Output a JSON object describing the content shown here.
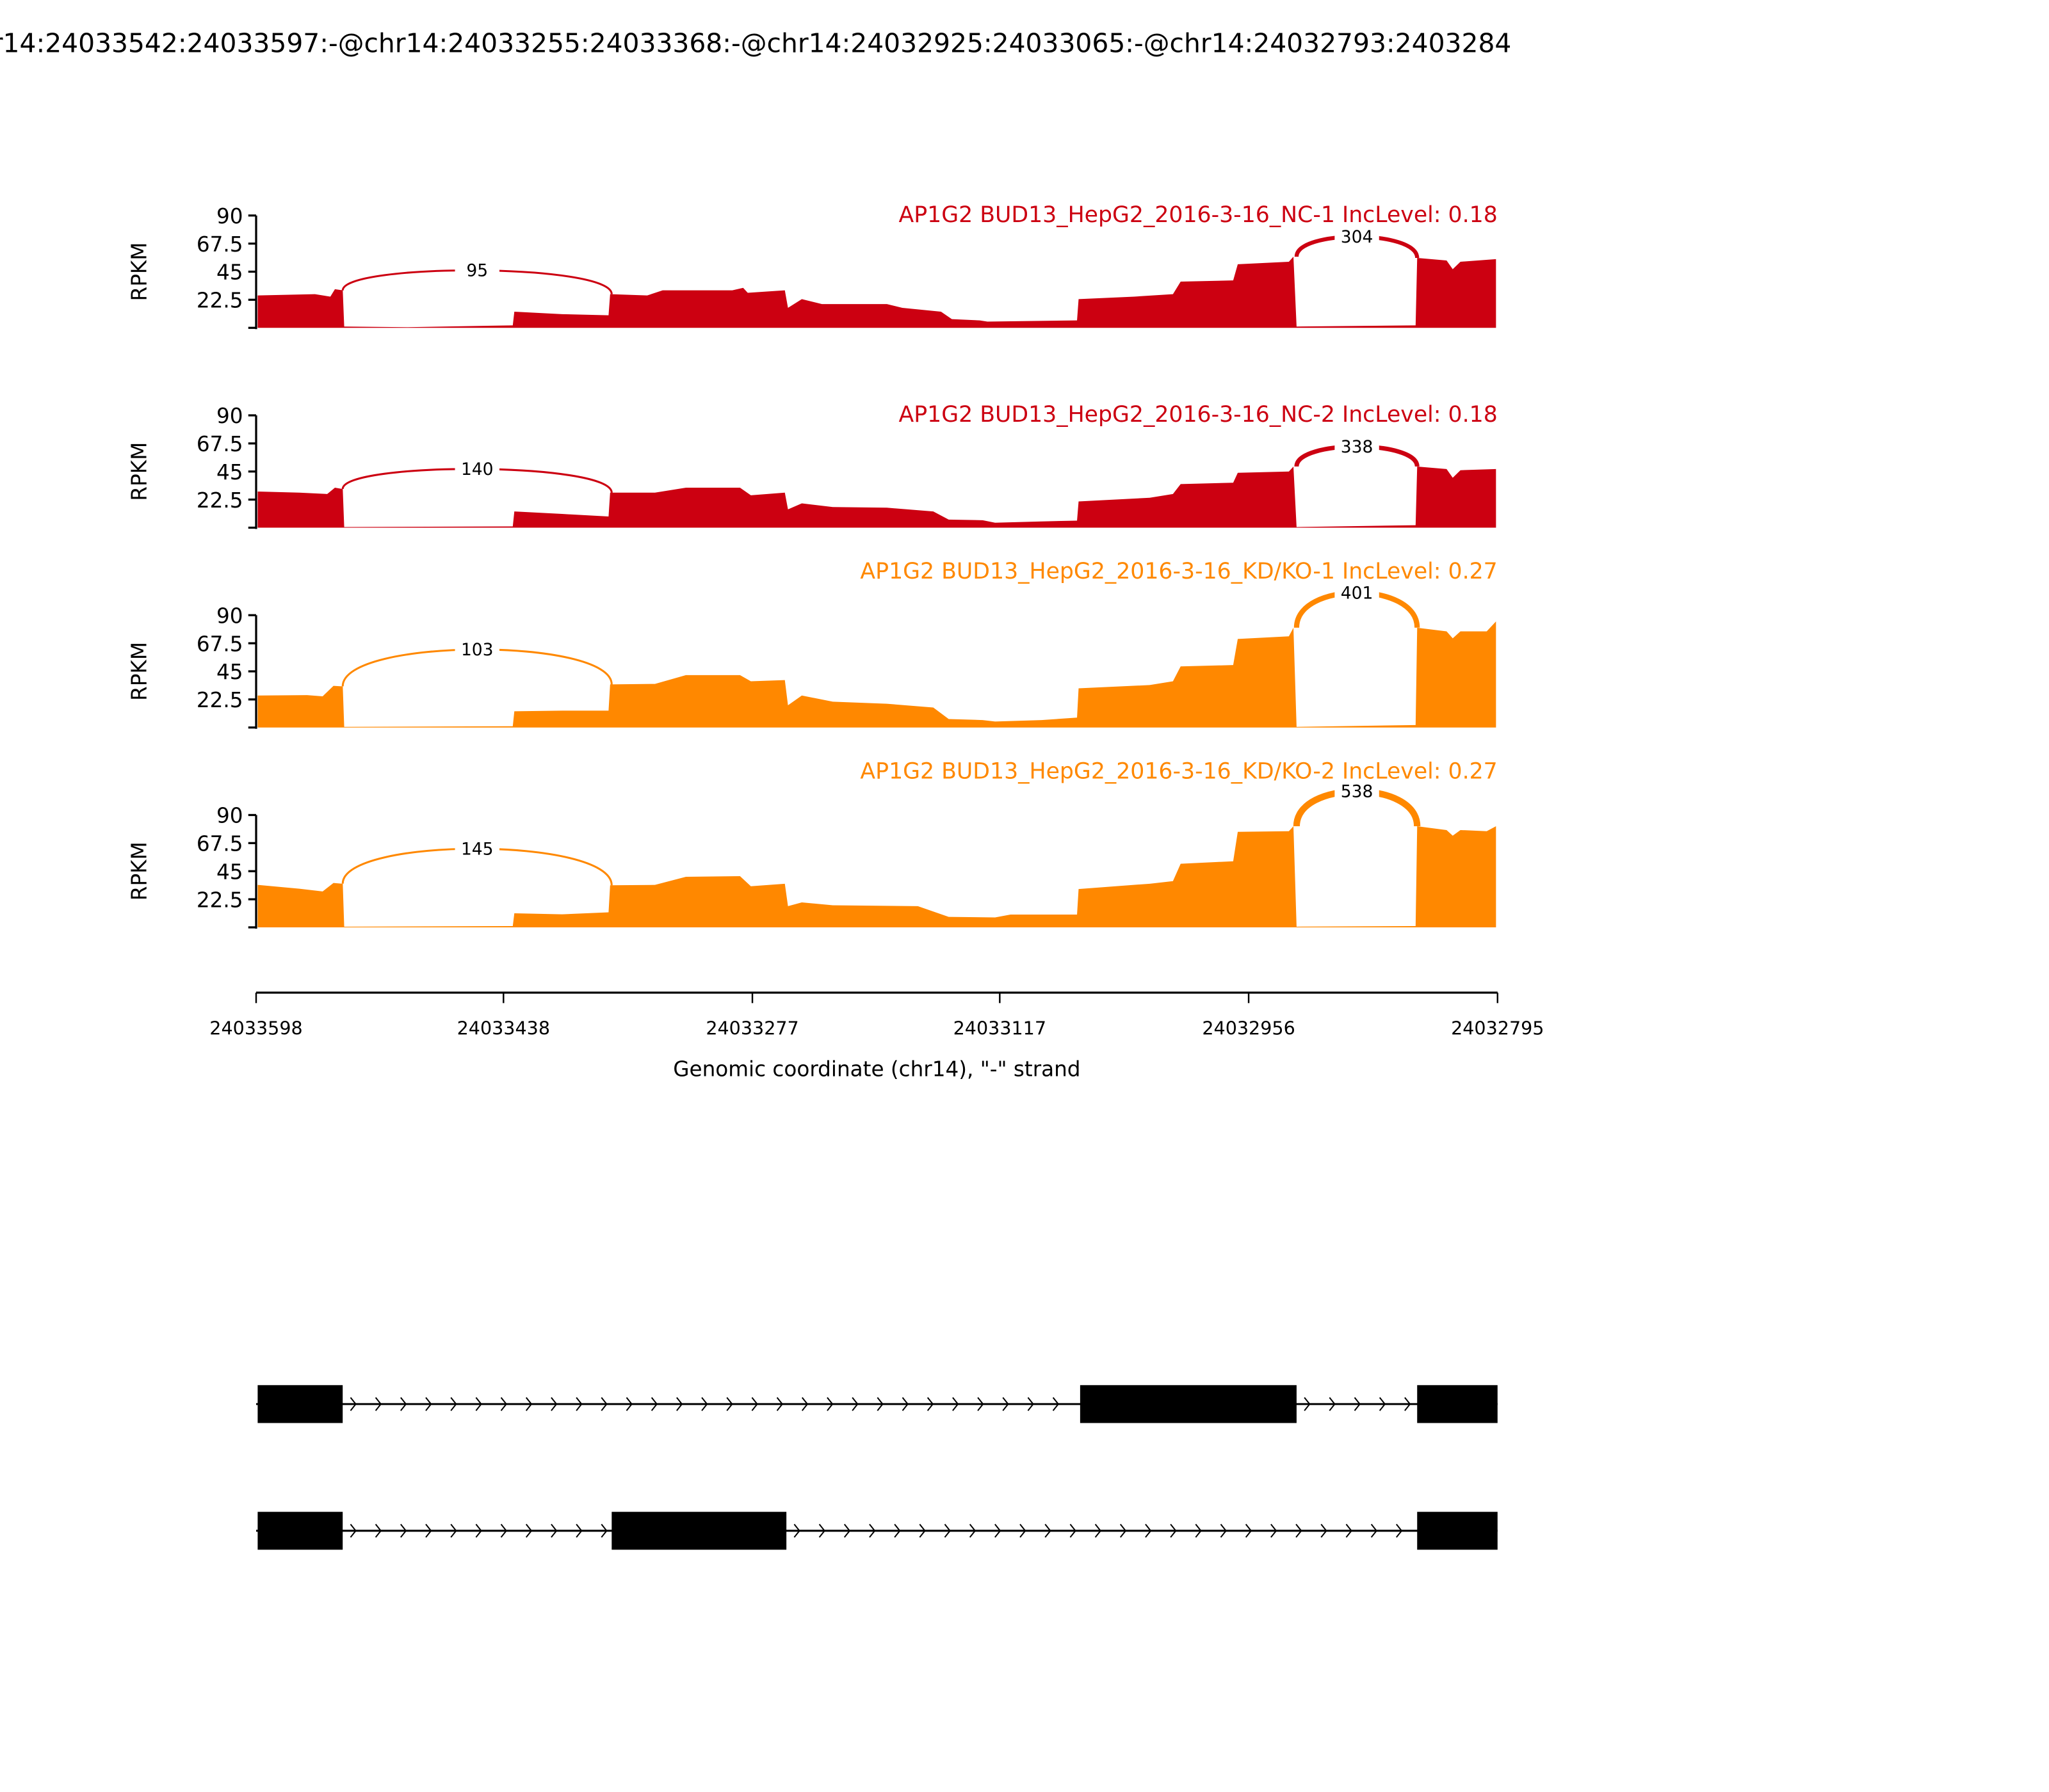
{
  "title": "r14:24033542:24033597:-@chr14:24033255:24033368:-@chr14:24032925:24033065:-@chr14:24032793:2403284",
  "colors": {
    "nc": "#cc0011",
    "kd": "#ff8800",
    "axis": "#000000",
    "gene": "#000000"
  },
  "chart_data": {
    "type": "area",
    "xlabel": "Genomic coordinate (chr14), \"-\" strand",
    "xlim": [
      24033598,
      24032795
    ],
    "xticks": [
      "24033598",
      "24033438",
      "24033277",
      "24033117",
      "24032956",
      "24032795"
    ],
    "ylabel": "RPKM",
    "ylim": [
      0,
      90
    ],
    "yticks": [
      "22.5",
      "45",
      "67.5",
      "90"
    ],
    "samples": [
      {
        "title": "AP1G2 BUD13_HepG2_2016-3-16_NC-1 IncLevel: 0.18",
        "group": "nc",
        "coverage": [
          [
            24033597,
            26
          ],
          [
            24033560,
            27
          ],
          [
            24033550,
            25
          ],
          [
            24033547,
            31
          ],
          [
            24033542,
            30
          ],
          [
            24033541,
            1
          ],
          [
            24033500,
            0.5
          ],
          [
            24033432,
            2
          ],
          [
            24033431,
            13
          ],
          [
            24033400,
            11
          ],
          [
            24033370,
            10
          ],
          [
            24033369,
            27
          ],
          [
            24033345,
            26
          ],
          [
            24033335,
            30
          ],
          [
            24033290,
            30
          ],
          [
            24033283,
            32
          ],
          [
            24033280,
            28
          ],
          [
            24033256,
            30
          ],
          [
            24033254,
            16
          ],
          [
            24033245,
            23
          ],
          [
            24033232,
            19
          ],
          [
            24033190,
            19
          ],
          [
            24033180,
            16
          ],
          [
            24033155,
            13
          ],
          [
            24033148,
            7
          ],
          [
            24033130,
            6
          ],
          [
            24033125,
            5
          ],
          [
            24033067,
            6
          ],
          [
            24033066,
            23
          ],
          [
            24033030,
            25
          ],
          [
            24033005,
            27
          ],
          [
            24033000,
            37
          ],
          [
            24032966,
            38
          ],
          [
            24032963,
            51
          ],
          [
            24032930,
            53
          ],
          [
            24032927,
            57
          ],
          [
            24032925,
            1
          ],
          [
            24032848,
            2
          ],
          [
            24032847,
            56
          ],
          [
            24032828,
            54
          ],
          [
            24032824,
            47
          ],
          [
            24032819,
            53
          ],
          [
            24032796,
            55
          ]
        ],
        "junctions": [
          {
            "from": 24033542,
            "to": 24033368,
            "count": "95"
          },
          {
            "from": 24032925,
            "to": 24032847,
            "count": "304"
          }
        ]
      },
      {
        "title": "AP1G2 BUD13_HepG2_2016-3-16_NC-2 IncLevel: 0.18",
        "group": "nc",
        "coverage": [
          [
            24033597,
            29
          ],
          [
            24033570,
            28
          ],
          [
            24033552,
            27
          ],
          [
            24033547,
            32
          ],
          [
            24033542,
            31
          ],
          [
            24033541,
            0.5
          ],
          [
            24033432,
            1
          ],
          [
            24033431,
            13
          ],
          [
            24033400,
            11
          ],
          [
            24033370,
            9
          ],
          [
            24033369,
            28
          ],
          [
            24033340,
            28
          ],
          [
            24033320,
            32
          ],
          [
            24033285,
            32
          ],
          [
            24033278,
            26
          ],
          [
            24033256,
            28
          ],
          [
            24033254,
            14.6
          ],
          [
            24033245,
            19.5
          ],
          [
            24033225,
            16.5
          ],
          [
            24033190,
            16
          ],
          [
            24033160,
            13
          ],
          [
            24033150,
            6.5
          ],
          [
            24033128,
            6
          ],
          [
            24033120,
            4
          ],
          [
            24033090,
            5
          ],
          [
            24033067,
            5.7
          ],
          [
            24033066,
            21
          ],
          [
            24033020,
            24
          ],
          [
            24033005,
            27
          ],
          [
            24033000,
            35
          ],
          [
            24032966,
            36
          ],
          [
            24032963,
            44
          ],
          [
            24032930,
            45
          ],
          [
            24032927,
            49
          ],
          [
            24032925,
            0.5
          ],
          [
            24032848,
            2
          ],
          [
            24032847,
            49
          ],
          [
            24032828,
            47
          ],
          [
            24032824,
            40
          ],
          [
            24032819,
            46
          ],
          [
            24032796,
            47
          ]
        ],
        "junctions": [
          {
            "from": 24033542,
            "to": 24033368,
            "count": "140"
          },
          {
            "from": 24032925,
            "to": 24032847,
            "count": "338"
          }
        ]
      },
      {
        "title": "AP1G2 BUD13_HepG2_2016-3-16_KD/KO-1 IncLevel: 0.27",
        "group": "kd",
        "coverage": [
          [
            24033597,
            25.6
          ],
          [
            24033565,
            26
          ],
          [
            24033555,
            25
          ],
          [
            24033548,
            33.4
          ],
          [
            24033542,
            33
          ],
          [
            24033541,
            0.5
          ],
          [
            24033432,
            1
          ],
          [
            24033431,
            13
          ],
          [
            24033400,
            13.5
          ],
          [
            24033370,
            13.5
          ],
          [
            24033369,
            34.5
          ],
          [
            24033340,
            35
          ],
          [
            24033320,
            42
          ],
          [
            24033285,
            42
          ],
          [
            24033278,
            37
          ],
          [
            24033256,
            38
          ],
          [
            24033254,
            17.8
          ],
          [
            24033245,
            25.6
          ],
          [
            24033225,
            20.7
          ],
          [
            24033190,
            19
          ],
          [
            24033160,
            16
          ],
          [
            24033150,
            6.8
          ],
          [
            24033128,
            6
          ],
          [
            24033120,
            4.8
          ],
          [
            24033090,
            6
          ],
          [
            24033067,
            8
          ],
          [
            24033066,
            31.4
          ],
          [
            24033020,
            34
          ],
          [
            24033005,
            37
          ],
          [
            24033000,
            49
          ],
          [
            24032966,
            50
          ],
          [
            24032963,
            71
          ],
          [
            24032930,
            73
          ],
          [
            24032927,
            80
          ],
          [
            24032925,
            0.5
          ],
          [
            24032848,
            2
          ],
          [
            24032847,
            80
          ],
          [
            24032828,
            77
          ],
          [
            24032824,
            71.5
          ],
          [
            24032819,
            77
          ],
          [
            24032802,
            77
          ],
          [
            24032796,
            85
          ]
        ],
        "junctions": [
          {
            "from": 24033542,
            "to": 24033368,
            "count": "103"
          },
          {
            "from": 24032925,
            "to": 24032847,
            "count": "401"
          }
        ]
      },
      {
        "title": "AP1G2 BUD13_HepG2_2016-3-16_KD/KO-2 IncLevel: 0.27",
        "group": "kd",
        "coverage": [
          [
            24033597,
            34
          ],
          [
            24033570,
            31
          ],
          [
            24033555,
            28.8
          ],
          [
            24033548,
            35.6
          ],
          [
            24033542,
            35
          ],
          [
            24033541,
            0.5
          ],
          [
            24033432,
            1
          ],
          [
            24033431,
            11.3
          ],
          [
            24033400,
            10.5
          ],
          [
            24033370,
            12
          ],
          [
            24033369,
            33.7
          ],
          [
            24033340,
            34
          ],
          [
            24033320,
            40.5
          ],
          [
            24033285,
            41
          ],
          [
            24033278,
            33
          ],
          [
            24033256,
            35
          ],
          [
            24033254,
            17
          ],
          [
            24033245,
            20
          ],
          [
            24033225,
            17.7
          ],
          [
            24033170,
            17
          ],
          [
            24033150,
            8.4
          ],
          [
            24033120,
            8
          ],
          [
            24033110,
            10.3
          ],
          [
            24033067,
            10.3
          ],
          [
            24033066,
            30.7
          ],
          [
            24033020,
            35
          ],
          [
            24033005,
            37
          ],
          [
            24033000,
            51
          ],
          [
            24032966,
            53
          ],
          [
            24032963,
            76.5
          ],
          [
            24032930,
            77
          ],
          [
            24032927,
            81
          ],
          [
            24032925,
            0.5
          ],
          [
            24032848,
            1
          ],
          [
            24032847,
            81
          ],
          [
            24032828,
            78
          ],
          [
            24032824,
            73.5
          ],
          [
            24032819,
            78
          ],
          [
            24032802,
            77
          ],
          [
            24032796,
            81
          ]
        ],
        "junctions": [
          {
            "from": 24033542,
            "to": 24033368,
            "count": "145"
          },
          {
            "from": 24032925,
            "to": 24032847,
            "count": "538"
          }
        ]
      }
    ],
    "transcripts": [
      {
        "exons": [
          [
            24033597,
            24033542
          ],
          [
            24033065,
            24032925
          ],
          [
            24032847,
            24032795
          ]
        ]
      },
      {
        "exons": [
          [
            24033597,
            24033542
          ],
          [
            24033368,
            24033255
          ],
          [
            24032847,
            24032795
          ]
        ]
      }
    ]
  }
}
